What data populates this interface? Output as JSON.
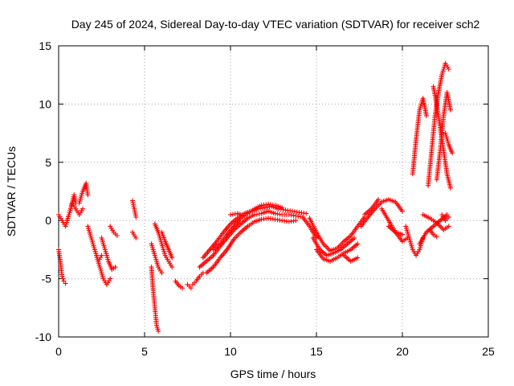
{
  "chart_data": {
    "type": "scatter",
    "title": "Day 245 of 2024, Sidereal Day-to-day VTEC variation (SDTVAR) for receiver sch2",
    "xlabel": "GPS time / hours",
    "ylabel": "SDTVAR / TECUs",
    "xlim": [
      0,
      25
    ],
    "ylim": [
      -10,
      15
    ],
    "xticks": [
      0,
      5,
      10,
      15,
      20,
      25
    ],
    "yticks": [
      -10,
      -5,
      0,
      5,
      10,
      15
    ],
    "xtick_labels": [
      "0",
      "5",
      "10",
      "15",
      "20",
      "25"
    ],
    "ytick_labels": [
      "-10",
      "-5",
      "0",
      "5",
      "10",
      "15"
    ],
    "grid": true,
    "marker": "plus",
    "color": "#ff0000",
    "tracks": [
      {
        "name": "t1",
        "x": [
          0.0,
          0.2,
          0.4,
          0.6,
          0.8,
          1.0,
          1.2,
          1.4
        ],
        "y": [
          0.5,
          0.0,
          -0.5,
          0.5,
          1.5,
          1.0,
          0.5,
          1.0
        ]
      },
      {
        "name": "t2",
        "x": [
          0.0,
          0.1,
          0.2,
          0.3,
          0.4
        ],
        "y": [
          -2.5,
          -3.5,
          -4.8,
          -5.2,
          -5.4
        ]
      },
      {
        "name": "t3",
        "x": [
          0.5,
          0.7,
          0.9,
          1.0
        ],
        "y": [
          0.0,
          1.0,
          2.2,
          1.5
        ]
      },
      {
        "name": "t4",
        "x": [
          1.2,
          1.4,
          1.6,
          1.7
        ],
        "y": [
          1.5,
          2.5,
          3.2,
          2.2
        ]
      },
      {
        "name": "t5",
        "x": [
          1.7,
          1.9,
          2.1,
          2.3,
          2.5
        ],
        "y": [
          -0.5,
          -1.5,
          -2.5,
          -3.5,
          -3.0
        ]
      },
      {
        "name": "t6",
        "x": [
          2.2,
          2.4,
          2.6,
          2.8,
          3.0
        ],
        "y": [
          -3.0,
          -4.0,
          -5.0,
          -5.5,
          -5.0
        ]
      },
      {
        "name": "t7",
        "x": [
          2.5,
          2.7,
          2.9,
          3.1,
          3.3
        ],
        "y": [
          -1.5,
          -2.5,
          -3.5,
          -4.2,
          -4.0
        ]
      },
      {
        "name": "t8",
        "x": [
          3.0,
          3.2,
          3.4
        ],
        "y": [
          -0.5,
          -1.0,
          -1.3
        ]
      },
      {
        "name": "t9",
        "x": [
          4.3,
          4.4,
          4.5
        ],
        "y": [
          1.7,
          1.0,
          0.3
        ]
      },
      {
        "name": "t10",
        "x": [
          4.3,
          4.5
        ],
        "y": [
          -1.0,
          -1.5
        ]
      },
      {
        "name": "t11",
        "x": [
          5.4,
          5.5,
          5.6,
          5.7,
          5.8
        ],
        "y": [
          -4.0,
          -6.0,
          -7.5,
          -9.0,
          -9.5
        ]
      },
      {
        "name": "t12",
        "x": [
          5.4,
          5.6,
          5.8,
          6.0
        ],
        "y": [
          -2.0,
          -3.0,
          -4.0,
          -4.5
        ]
      },
      {
        "name": "t13",
        "x": [
          5.6,
          5.8,
          6.0,
          6.2,
          6.4,
          6.6
        ],
        "y": [
          -0.3,
          -1.0,
          -2.0,
          -3.0,
          -3.5,
          -4.0
        ]
      },
      {
        "name": "t14",
        "x": [
          6.0,
          6.2,
          6.4,
          6.6
        ],
        "y": [
          -1.0,
          -1.8,
          -2.5,
          -3.2
        ]
      },
      {
        "name": "t15",
        "x": [
          6.8,
          7.0,
          7.2
        ],
        "y": [
          -5.2,
          -5.6,
          -5.8
        ]
      },
      {
        "name": "t16",
        "x": [
          7.5,
          7.7
        ],
        "y": [
          -5.5,
          -5.8
        ]
      },
      {
        "name": "t17",
        "x": [
          7.8,
          8.0,
          8.2,
          8.4
        ],
        "y": [
          -5.5,
          -5.2,
          -4.8,
          -4.5
        ]
      },
      {
        "name": "t18",
        "x": [
          8.2,
          8.6,
          9.0,
          9.4,
          9.8,
          10.2,
          10.6,
          11.0,
          11.4,
          11.8,
          12.2,
          12.6,
          13.0,
          13.4,
          13.8,
          14.2,
          14.6,
          15.0
        ],
        "y": [
          -4.0,
          -3.5,
          -3.0,
          -2.2,
          -1.5,
          -0.8,
          -0.3,
          0.2,
          0.5,
          0.6,
          0.8,
          0.6,
          0.5,
          0.5,
          0.4,
          0.3,
          -0.5,
          -1.5
        ]
      },
      {
        "name": "t19",
        "x": [
          8.4,
          8.8,
          9.2,
          9.6,
          10.0,
          10.4,
          10.8,
          11.2,
          11.6,
          12.0,
          12.4,
          12.8,
          13.2,
          13.6,
          14.0,
          14.4
        ],
        "y": [
          -3.2,
          -2.5,
          -1.8,
          -1.0,
          -0.3,
          0.2,
          0.6,
          0.8,
          1.0,
          1.1,
          1.2,
          1.0,
          0.9,
          0.8,
          0.7,
          0.6
        ]
      },
      {
        "name": "t20",
        "x": [
          8.6,
          9.0,
          9.4,
          9.8,
          10.2,
          10.6,
          11.0,
          11.4,
          11.8,
          12.2,
          12.6,
          13.0,
          13.4,
          13.8
        ],
        "y": [
          -4.5,
          -4.0,
          -3.2,
          -2.5,
          -1.6,
          -1.0,
          -0.5,
          -0.1,
          0.1,
          0.2,
          0.1,
          0.0,
          -0.1,
          0.0
        ]
      },
      {
        "name": "t21",
        "x": [
          9.0,
          9.4,
          9.8,
          10.2,
          10.6,
          11.0,
          11.4,
          11.8,
          12.2,
          12.6,
          13.0
        ],
        "y": [
          -2.5,
          -2.0,
          -1.2,
          -0.5,
          0.2,
          0.6,
          1.0,
          1.3,
          1.4,
          1.3,
          1.1
        ]
      },
      {
        "name": "t22",
        "x": [
          10.0,
          10.4,
          10.8
        ],
        "y": [
          0.5,
          0.6,
          0.4
        ]
      },
      {
        "name": "t23",
        "x": [
          14.6,
          15.0,
          15.4,
          15.8,
          16.2,
          16.6,
          17.0,
          17.4,
          17.8
        ],
        "y": [
          0.2,
          -1.0,
          -2.0,
          -2.6,
          -2.4,
          -1.8,
          -1.3,
          -0.5,
          0.3
        ]
      },
      {
        "name": "t24",
        "x": [
          14.8,
          15.2,
          15.6,
          16.0,
          16.4,
          16.8,
          17.2
        ],
        "y": [
          -1.5,
          -2.5,
          -3.0,
          -2.8,
          -2.5,
          -2.0,
          -1.5
        ]
      },
      {
        "name": "t25",
        "x": [
          15.0,
          15.4,
          15.8,
          16.2,
          16.6,
          17.0,
          17.4
        ],
        "y": [
          -2.5,
          -3.3,
          -3.5,
          -3.2,
          -2.8,
          -2.5,
          -2.0
        ]
      },
      {
        "name": "t26",
        "x": [
          16.6,
          17.0,
          17.4
        ],
        "y": [
          -3.0,
          -3.5,
          -3.2
        ]
      },
      {
        "name": "t27",
        "x": [
          17.6,
          18.0,
          18.4,
          18.8,
          19.2,
          19.6,
          20.0
        ],
        "y": [
          -0.5,
          0.3,
          1.0,
          1.6,
          1.8,
          1.6,
          0.8
        ]
      },
      {
        "name": "t28",
        "x": [
          17.8,
          18.2,
          18.6
        ],
        "y": [
          0.5,
          1.0,
          1.8
        ]
      },
      {
        "name": "t29",
        "x": [
          18.8,
          19.2,
          19.6,
          20.0,
          20.3
        ],
        "y": [
          1.0,
          0.0,
          -1.0,
          -1.8,
          -1.5
        ]
      },
      {
        "name": "t30",
        "x": [
          19.2,
          19.6,
          20.0
        ],
        "y": [
          -0.5,
          -1.0,
          -1.2
        ]
      },
      {
        "name": "t31",
        "x": [
          20.2,
          20.4,
          20.6,
          20.8,
          21.0,
          21.2
        ],
        "y": [
          -0.5,
          -1.5,
          -2.5,
          -3.0,
          -2.5,
          -1.5
        ]
      },
      {
        "name": "t32",
        "x": [
          20.6,
          20.8,
          21.0,
          21.2,
          21.4
        ],
        "y": [
          4.0,
          7.0,
          9.5,
          10.5,
          9.0
        ]
      },
      {
        "name": "t33",
        "x": [
          21.0,
          21.4,
          21.8,
          22.2,
          22.6
        ],
        "y": [
          -2.0,
          -1.0,
          -0.5,
          0.0,
          0.5
        ]
      },
      {
        "name": "t34",
        "x": [
          21.2,
          21.6,
          22.0,
          22.4,
          22.7
        ],
        "y": [
          0.5,
          0.2,
          -0.2,
          -0.8,
          -0.5
        ]
      },
      {
        "name": "t35",
        "x": [
          21.5,
          21.7,
          21.9,
          22.1,
          22.3,
          22.5,
          22.7
        ],
        "y": [
          3.0,
          6.0,
          9.0,
          11.0,
          12.5,
          13.5,
          13.0
        ]
      },
      {
        "name": "t36",
        "x": [
          21.8,
          22.0,
          22.2,
          22.4,
          22.6,
          22.8
        ],
        "y": [
          11.5,
          10.0,
          8.0,
          6.0,
          4.0,
          2.8
        ]
      },
      {
        "name": "t37",
        "x": [
          22.0,
          22.2,
          22.4,
          22.6,
          22.8
        ],
        "y": [
          3.5,
          6.0,
          9.0,
          11.0,
          9.5
        ]
      },
      {
        "name": "t38",
        "x": [
          22.5,
          22.7,
          22.9
        ],
        "y": [
          7.5,
          6.5,
          5.8
        ]
      },
      {
        "name": "t39",
        "x": [
          22.3,
          22.5,
          22.7
        ],
        "y": [
          0.5,
          0.0,
          0.3
        ]
      },
      {
        "name": "t40",
        "x": [
          21.6,
          21.8,
          22.0
        ],
        "y": [
          -0.8,
          -1.2,
          -1.4
        ]
      }
    ]
  }
}
